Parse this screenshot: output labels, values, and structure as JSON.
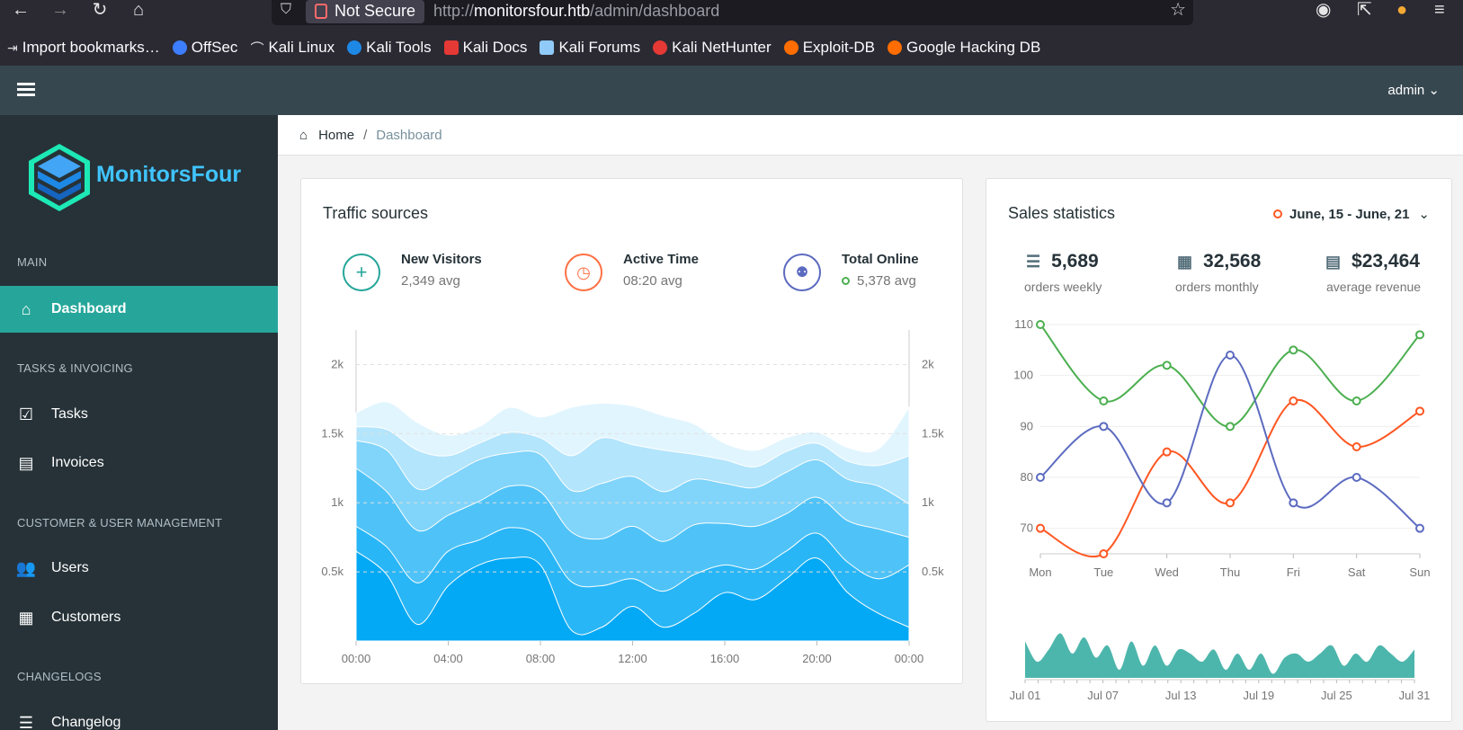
{
  "browser": {
    "url_prefix": "http://",
    "url_host": "monitorsfour.htb",
    "url_path": "/admin/dashboard",
    "not_secure": "Not Secure",
    "bookmarks": [
      "Import bookmarks…",
      "OffSec",
      "Kali Linux",
      "Kali Tools",
      "Kali Docs",
      "Kali Forums",
      "Kali NetHunter",
      "Exploit-DB",
      "Google Hacking DB"
    ],
    "colors": {
      "offsec": "#3d7eff",
      "kali": "#1e88e5",
      "docs": "#e53935",
      "exploit": "#ff6d00"
    }
  },
  "header": {
    "user": "admin"
  },
  "sidebar": {
    "brand": "MonitorsFour",
    "sections": {
      "main": "MAIN",
      "tasks": "TASKS & INVOICING",
      "customers": "CUSTOMER & USER MANAGEMENT",
      "changelogs": "CHANGELOGS"
    },
    "items": {
      "dashboard": "Dashboard",
      "tasks": "Tasks",
      "invoices": "Invoices",
      "users": "Users",
      "customers": "Customers",
      "changelog": "Changelog"
    }
  },
  "breadcrumb": {
    "home": "Home",
    "current": "Dashboard"
  },
  "traffic": {
    "title": "Traffic sources",
    "stats": [
      {
        "label": "New Visitors",
        "sub": "2,349 avg",
        "color": "#26a69a"
      },
      {
        "label": "Active Time",
        "sub": "08:20 avg",
        "color": "#ff7043"
      },
      {
        "label": "Total Online",
        "sub": "5,378 avg",
        "color": "#5c6bc0"
      }
    ]
  },
  "sales": {
    "title": "Sales statistics",
    "range": "June, 15 - June, 21",
    "stats": [
      {
        "value": "5,689",
        "label": "orders weekly"
      },
      {
        "value": "32,568",
        "label": "orders monthly"
      },
      {
        "value": "$23,464",
        "label": "average revenue"
      }
    ]
  },
  "chart_data": [
    {
      "type": "area",
      "title": "Traffic sources",
      "x_ticks": [
        "00:00",
        "04:00",
        "08:00",
        "12:00",
        "16:00",
        "20:00",
        "00:00"
      ],
      "y_ticks": [
        "0.5k",
        "1k",
        "1.5k",
        "2k"
      ],
      "ylim": [
        0,
        2250
      ],
      "stacked": true,
      "colors": [
        "#03a9f4",
        "#29b6f6",
        "#4fc3f7",
        "#81d4fa",
        "#b3e5fc",
        "#e1f5fe"
      ],
      "series": [
        {
          "values": [
            650,
            480,
            120,
            400,
            550,
            600,
            550,
            80,
            100,
            250,
            100,
            200,
            350,
            300,
            450,
            600,
            350,
            200,
            100
          ]
        },
        {
          "values": [
            180,
            200,
            300,
            250,
            180,
            220,
            200,
            350,
            300,
            200,
            260,
            280,
            200,
            220,
            200,
            180,
            220,
            250,
            450
          ]
        },
        {
          "values": [
            420,
            400,
            380,
            260,
            280,
            300,
            330,
            360,
            340,
            380,
            360,
            360,
            300,
            310,
            270,
            260,
            300,
            360,
            200
          ]
        },
        {
          "values": [
            200,
            300,
            300,
            280,
            300,
            240,
            270,
            300,
            400,
            360,
            360,
            330,
            290,
            280,
            300,
            270,
            300,
            310,
            240
          ]
        },
        {
          "values": [
            100,
            150,
            280,
            150,
            120,
            150,
            120,
            250,
            330,
            230,
            300,
            180,
            170,
            150,
            150,
            120,
            130,
            150,
            350
          ]
        },
        {
          "values": [
            100,
            200,
            200,
            150,
            120,
            180,
            150,
            350,
            250,
            280,
            250,
            220,
            120,
            120,
            100,
            80,
            100,
            120,
            350
          ]
        }
      ]
    },
    {
      "type": "line",
      "title": "Sales statistics",
      "categories": [
        "Mon",
        "Tue",
        "Wed",
        "Thu",
        "Fri",
        "Sat",
        "Sun"
      ],
      "y_ticks": [
        70,
        80,
        90,
        100,
        110
      ],
      "ylim": [
        65,
        110
      ],
      "series": [
        {
          "color": "#4caf50",
          "values": [
            110,
            95,
            102,
            90,
            105,
            95,
            108
          ]
        },
        {
          "color": "#ff5722",
          "values": [
            70,
            65,
            85,
            75,
            95,
            86,
            93
          ]
        },
        {
          "color": "#5c6bc0",
          "values": [
            80,
            90,
            75,
            104,
            75,
            80,
            70
          ]
        }
      ]
    },
    {
      "type": "area",
      "color": "#4db6ac",
      "x_ticks": [
        "Jul 01",
        "Jul 07",
        "Jul 13",
        "Jul 19",
        "Jul 25",
        "Jul 31"
      ],
      "values": [
        45,
        20,
        35,
        55,
        30,
        50,
        25,
        40,
        10,
        45,
        15,
        40,
        15,
        35,
        30,
        20,
        35,
        10,
        30,
        10,
        30,
        5,
        25,
        30,
        20,
        30,
        40,
        15,
        30,
        20,
        40,
        30,
        20,
        35
      ]
    }
  ]
}
